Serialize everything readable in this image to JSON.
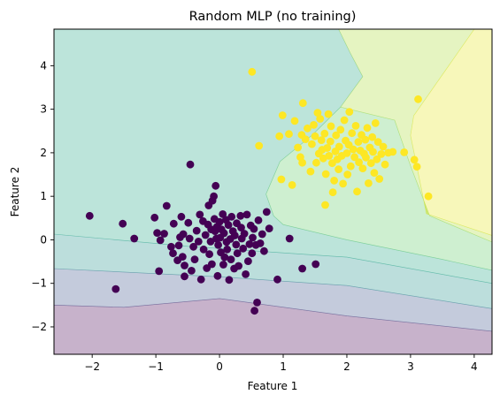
{
  "chart_data": {
    "type": "scatter",
    "title": "Random MLP (no training)",
    "xlabel": "Feature 1",
    "ylabel": "Feature 2",
    "xlim": [
      -2.6,
      4.28
    ],
    "ylim": [
      -2.63,
      4.84
    ],
    "xticks": [
      -2,
      -1,
      0,
      1,
      2,
      3,
      4
    ],
    "yticks": [
      -2,
      -1,
      0,
      1,
      2,
      3,
      4
    ],
    "grid": false,
    "legend": "none",
    "decision_regions": [
      {
        "level": 0,
        "color": "#440154",
        "polygon": [
          [
            -2.6,
            -2.63
          ],
          [
            4.28,
            -2.63
          ],
          [
            4.28,
            -2.1
          ],
          [
            2.0,
            -1.75
          ],
          [
            0.0,
            -1.35
          ],
          [
            -1.5,
            -1.55
          ],
          [
            -2.6,
            -1.5
          ]
        ]
      },
      {
        "level": 1,
        "color": "#3b528b",
        "polygon": [
          [
            -2.6,
            -1.5
          ],
          [
            -1.5,
            -1.55
          ],
          [
            0.0,
            -1.35
          ],
          [
            2.0,
            -1.75
          ],
          [
            4.28,
            -2.1
          ],
          [
            4.28,
            -1.58
          ],
          [
            2.0,
            -1.05
          ],
          [
            0.0,
            -0.85
          ],
          [
            -2.6,
            -0.66
          ]
        ]
      },
      {
        "level": 2,
        "color": "#21918c",
        "polygon": [
          [
            -2.6,
            -0.66
          ],
          [
            0.0,
            -0.85
          ],
          [
            2.0,
            -1.05
          ],
          [
            4.28,
            -1.58
          ],
          [
            4.28,
            -1.0
          ],
          [
            2.0,
            -0.4
          ],
          [
            -0.5,
            -0.15
          ],
          [
            -2.6,
            0.13
          ]
        ]
      },
      {
        "level": 3,
        "color": "#21a585",
        "polygon": [
          [
            -2.6,
            0.13
          ],
          [
            -0.5,
            -0.15
          ],
          [
            2.0,
            -0.4
          ],
          [
            4.28,
            -1.0
          ],
          [
            4.28,
            -0.7
          ],
          [
            3.5,
            -0.45
          ],
          [
            2.0,
            0.0
          ],
          [
            1.0,
            0.35
          ],
          [
            0.85,
            0.55
          ],
          [
            0.73,
            1.05
          ],
          [
            0.95,
            1.8
          ],
          [
            1.45,
            2.4
          ],
          [
            1.9,
            3.05
          ],
          [
            2.25,
            3.75
          ],
          [
            2.05,
            4.3
          ],
          [
            1.87,
            4.84
          ],
          [
            -2.6,
            4.84
          ]
        ]
      },
      {
        "level": 4,
        "color": "#5ec962",
        "polygon": [
          [
            0.85,
            0.55
          ],
          [
            1.0,
            0.35
          ],
          [
            2.0,
            0.0
          ],
          [
            3.5,
            -0.45
          ],
          [
            4.28,
            -0.7
          ],
          [
            4.28,
            -0.05
          ],
          [
            3.3,
            0.55
          ],
          [
            3.0,
            1.7
          ],
          [
            2.75,
            2.75
          ],
          [
            1.9,
            3.05
          ],
          [
            1.45,
            2.4
          ],
          [
            0.95,
            1.8
          ],
          [
            0.73,
            1.05
          ]
        ]
      },
      {
        "level": 5,
        "color": "#aadc32",
        "polygon": [
          [
            1.87,
            4.84
          ],
          [
            2.05,
            4.3
          ],
          [
            2.25,
            3.75
          ],
          [
            1.9,
            3.05
          ],
          [
            2.75,
            2.75
          ],
          [
            3.0,
            1.7
          ],
          [
            3.3,
            0.55
          ],
          [
            4.28,
            -0.05
          ],
          [
            4.28,
            0.1
          ],
          [
            3.25,
            0.6
          ],
          [
            3.0,
            2.4
          ],
          [
            3.05,
            2.85
          ],
          [
            4.0,
            4.84
          ]
        ]
      },
      {
        "level": 6,
        "color": "#e6e51a",
        "polygon": [
          [
            4.0,
            4.84
          ],
          [
            3.05,
            2.85
          ],
          [
            3.0,
            2.4
          ],
          [
            3.25,
            0.6
          ],
          [
            4.28,
            0.1
          ],
          [
            4.28,
            4.84
          ]
        ]
      }
    ],
    "series": [
      {
        "color": "#440154",
        "points": [
          [
            -2.04,
            0.55
          ],
          [
            -1.63,
            -1.13
          ],
          [
            -1.52,
            0.37
          ],
          [
            -1.34,
            0.03
          ],
          [
            -1.02,
            0.51
          ],
          [
            -0.98,
            0.16
          ],
          [
            -0.95,
            -0.72
          ],
          [
            -0.93,
            -0.01
          ],
          [
            -0.87,
            0.14
          ],
          [
            -0.83,
            0.78
          ],
          [
            -0.76,
            -0.16
          ],
          [
            -0.73,
            -0.31
          ],
          [
            -0.72,
            0.37
          ],
          [
            -0.66,
            -0.47
          ],
          [
            -0.64,
            -0.13
          ],
          [
            -0.62,
            0.06
          ],
          [
            -0.6,
            0.53
          ],
          [
            -0.58,
            -0.39
          ],
          [
            -0.57,
            0.13
          ],
          [
            -0.55,
            -0.59
          ],
          [
            -0.55,
            -0.84
          ],
          [
            -0.49,
            0.39
          ],
          [
            -0.47,
            0.03
          ],
          [
            -0.46,
            1.73
          ],
          [
            -0.44,
            -0.71
          ],
          [
            -0.41,
            -0.16
          ],
          [
            -0.39,
            -0.45
          ],
          [
            -0.36,
            0.21
          ],
          [
            -0.33,
            -0.04
          ],
          [
            -0.31,
            0.58
          ],
          [
            -0.29,
            -0.91
          ],
          [
            -0.26,
            0.43
          ],
          [
            -0.25,
            -0.22
          ],
          [
            -0.22,
            0.11
          ],
          [
            -0.2,
            -0.65
          ],
          [
            -0.18,
            0.35
          ],
          [
            -0.17,
            0.79
          ],
          [
            -0.16,
            -0.33
          ],
          [
            -0.14,
            -0.04
          ],
          [
            -0.13,
            0.24
          ],
          [
            -0.12,
            -0.56
          ],
          [
            -0.11,
            0.9
          ],
          [
            -0.09,
            1.0
          ],
          [
            -0.08,
            0.48
          ],
          [
            -0.07,
            0.2
          ],
          [
            -0.06,
            1.24
          ],
          [
            -0.05,
            0.03
          ],
          [
            -0.04,
            0.3
          ],
          [
            -0.03,
            -0.83
          ],
          [
            -0.02,
            -0.12
          ],
          [
            0.0,
            0.41
          ],
          [
            0.01,
            0.05
          ],
          [
            0.02,
            -0.29
          ],
          [
            0.03,
            0.24
          ],
          [
            0.05,
            0.59
          ],
          [
            0.06,
            -0.57
          ],
          [
            0.07,
            0.15
          ],
          [
            0.08,
            -0.4
          ],
          [
            0.1,
            0.46
          ],
          [
            0.11,
            -0.05
          ],
          [
            0.12,
            -0.22
          ],
          [
            0.14,
            0.34
          ],
          [
            0.15,
            -0.92
          ],
          [
            0.17,
            0.02
          ],
          [
            0.18,
            -0.45
          ],
          [
            0.19,
            0.53
          ],
          [
            0.21,
            0.2
          ],
          [
            0.23,
            -0.66
          ],
          [
            0.24,
            0.1
          ],
          [
            0.26,
            -0.11
          ],
          [
            0.27,
            0.38
          ],
          [
            0.28,
            -0.31
          ],
          [
            0.3,
            -0.6
          ],
          [
            0.33,
            0.55
          ],
          [
            0.34,
            0.28
          ],
          [
            0.35,
            0.03
          ],
          [
            0.37,
            -0.2
          ],
          [
            0.39,
            0.14
          ],
          [
            0.41,
            -0.79
          ],
          [
            0.43,
            0.58
          ],
          [
            0.45,
            -0.49
          ],
          [
            0.47,
            -0.1
          ],
          [
            0.49,
            0.33
          ],
          [
            0.51,
            -0.31
          ],
          [
            0.52,
            0.05
          ],
          [
            0.54,
            0.25
          ],
          [
            0.55,
            -1.63
          ],
          [
            0.57,
            -0.12
          ],
          [
            0.59,
            -1.44
          ],
          [
            0.61,
            0.45
          ],
          [
            0.64,
            -0.08
          ],
          [
            0.67,
            0.13
          ],
          [
            0.7,
            -0.26
          ],
          [
            0.74,
            0.64
          ],
          [
            0.78,
            0.26
          ],
          [
            0.91,
            -0.91
          ],
          [
            1.1,
            0.03
          ],
          [
            1.3,
            -0.66
          ],
          [
            1.51,
            -0.56
          ]
        ]
      },
      {
        "color": "#fde725",
        "points": [
          [
            0.51,
            3.86
          ],
          [
            0.62,
            2.16
          ],
          [
            0.94,
            2.38
          ],
          [
            0.97,
            1.39
          ],
          [
            0.99,
            2.86
          ],
          [
            1.09,
            2.43
          ],
          [
            1.14,
            1.26
          ],
          [
            1.18,
            2.73
          ],
          [
            1.23,
            2.12
          ],
          [
            1.27,
            1.9
          ],
          [
            1.29,
            2.41
          ],
          [
            1.3,
            1.77
          ],
          [
            1.31,
            3.14
          ],
          [
            1.35,
            2.31
          ],
          [
            1.38,
            2.56
          ],
          [
            1.43,
            1.57
          ],
          [
            1.45,
            2.2
          ],
          [
            1.48,
            2.64
          ],
          [
            1.5,
            2.38
          ],
          [
            1.52,
            1.77
          ],
          [
            1.54,
            2.92
          ],
          [
            1.56,
            1.98
          ],
          [
            1.58,
            2.78
          ],
          [
            1.6,
            2.29
          ],
          [
            1.61,
            2.07
          ],
          [
            1.63,
            1.87
          ],
          [
            1.65,
            2.44
          ],
          [
            1.66,
            0.8
          ],
          [
            1.67,
            1.51
          ],
          [
            1.69,
            2.11
          ],
          [
            1.71,
            2.89
          ],
          [
            1.72,
            1.93
          ],
          [
            1.74,
            2.26
          ],
          [
            1.75,
            2.61
          ],
          [
            1.77,
            1.76
          ],
          [
            1.78,
            1.09
          ],
          [
            1.8,
            1.36
          ],
          [
            1.82,
            2.03
          ],
          [
            1.83,
            2.4
          ],
          [
            1.85,
            1.85
          ],
          [
            1.87,
            1.62
          ],
          [
            1.88,
            2.14
          ],
          [
            1.9,
            2.53
          ],
          [
            1.92,
            1.93
          ],
          [
            1.94,
            1.29
          ],
          [
            1.96,
            2.75
          ],
          [
            1.98,
            2.28
          ],
          [
            2.0,
            1.99
          ],
          [
            2.01,
            1.5
          ],
          [
            2.03,
            2.18
          ],
          [
            2.04,
            2.94
          ],
          [
            2.06,
            1.69
          ],
          [
            2.08,
            2.45
          ],
          [
            2.1,
            2.08
          ],
          [
            2.12,
            1.9
          ],
          [
            2.14,
            2.62
          ],
          [
            2.16,
            1.11
          ],
          [
            2.18,
            2.25
          ],
          [
            2.19,
            1.78
          ],
          [
            2.21,
            2.05
          ],
          [
            2.23,
            2.41
          ],
          [
            2.25,
            1.64
          ],
          [
            2.27,
            1.98
          ],
          [
            2.29,
            2.3
          ],
          [
            2.3,
            1.89
          ],
          [
            2.32,
            2.57
          ],
          [
            2.34,
            1.3
          ],
          [
            2.36,
            2.12
          ],
          [
            2.38,
            1.76
          ],
          [
            2.4,
            2.36
          ],
          [
            2.41,
            2.02
          ],
          [
            2.43,
            1.54
          ],
          [
            2.45,
            2.68
          ],
          [
            2.47,
            1.85
          ],
          [
            2.49,
            2.25
          ],
          [
            2.51,
            1.4
          ],
          [
            2.54,
            1.97
          ],
          [
            2.57,
            2.14
          ],
          [
            2.6,
            1.73
          ],
          [
            2.65,
            2.0
          ],
          [
            2.72,
            2.02
          ],
          [
            2.9,
            2.01
          ],
          [
            3.06,
            1.84
          ],
          [
            3.1,
            1.68
          ],
          [
            3.12,
            3.23
          ],
          [
            3.28,
            1.0
          ]
        ]
      }
    ]
  }
}
